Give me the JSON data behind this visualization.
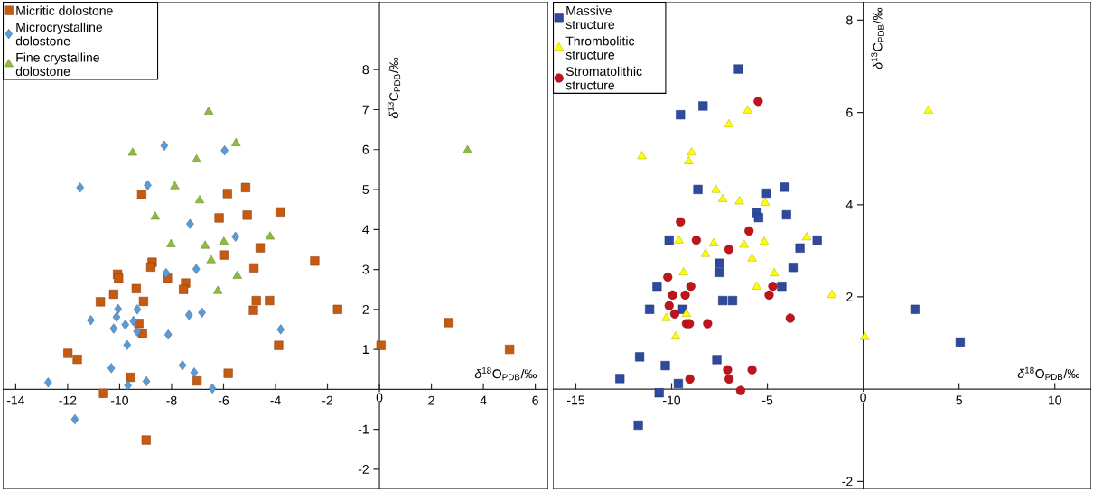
{
  "chart_data": [
    {
      "type": "scatter",
      "xlabel": "*δ*$^{18}$O$_{PDB}$/‰",
      "ylabel": "*δ*$^{13}$C$_{PDB}$/‰",
      "legend": "top left",
      "xlim": [
        -14.5,
        6.5
      ],
      "ylim": [
        -2.5,
        9.7
      ],
      "xticks": [
        -14,
        -12,
        -10,
        -8,
        -6,
        -4,
        -2,
        0,
        2,
        4,
        6
      ],
      "yticks": [
        -2,
        -1,
        1,
        2,
        3,
        4,
        5,
        6,
        7,
        8
      ],
      "series": [
        {
          "name": "Micritic dolostone",
          "color": "#c55a11",
          "marker": "square",
          "x": [
            -9.15,
            -5.85,
            -5.15,
            -6.17,
            -5.09,
            -4.59,
            -5.99,
            -4.83,
            -8.75,
            -8.8,
            -10.08,
            -10.04,
            -8.16,
            -7.46,
            -7.54,
            -9.36,
            -10.23,
            -10.74,
            -9.08,
            -4.74,
            -4.85,
            -4.23,
            -9.26,
            -9.12,
            -11.99,
            -11.63,
            -9.57,
            -5.82,
            -7.02,
            -10.62,
            -8.98,
            -3.82,
            -2.49,
            -1.61,
            -3.88,
            0.06,
            2.67,
            5.01
          ],
          "values": [
            4.88,
            4.9,
            5.05,
            4.29,
            4.36,
            3.54,
            3.36,
            3.04,
            3.18,
            3.06,
            2.88,
            2.78,
            2.78,
            2.66,
            2.5,
            2.52,
            2.38,
            2.19,
            2.2,
            2.22,
            1.98,
            2.22,
            1.65,
            1.4,
            0.9,
            0.75,
            0.3,
            0.4,
            0.21,
            -0.1,
            -1.27,
            4.44,
            3.21,
            2.0,
            1.1,
            1.1,
            1.67,
            1.0
          ]
        },
        {
          "name": "Microcrystalline dolostone",
          "color": "#5b9bd5",
          "marker": "diamond",
          "x": [
            -8.28,
            -5.96,
            -11.52,
            -8.92,
            -7.29,
            -5.54,
            -7.05,
            -8.21,
            -10.06,
            -9.32,
            -11.11,
            -10.12,
            -9.78,
            -10.23,
            -7.33,
            -6.83,
            -9.47,
            -9.33,
            -8.13,
            -9.71,
            -10.32,
            -7.58,
            -7.13,
            -12.75,
            -8.97,
            -9.68,
            -6.43,
            -11.72,
            -3.8
          ],
          "values": [
            6.1,
            5.98,
            5.05,
            5.11,
            4.14,
            3.82,
            3.01,
            2.91,
            2.01,
            2.0,
            1.73,
            1.81,
            1.62,
            1.52,
            1.86,
            1.92,
            1.71,
            1.45,
            1.37,
            1.11,
            0.53,
            0.6,
            0.42,
            0.17,
            0.2,
            0.1,
            0.02,
            -0.75,
            1.5
          ]
        },
        {
          "name": "Fine crystalline dolostone",
          "color": "#8cbd3f",
          "marker": "triangle",
          "x": [
            -6.57,
            -5.52,
            -9.5,
            -7.04,
            -7.88,
            -6.92,
            -8.63,
            -8.02,
            -6.71,
            -5.99,
            -6.48,
            -5.47,
            -6.22,
            -4.21,
            3.39
          ],
          "values": [
            6.95,
            6.16,
            5.92,
            5.75,
            5.08,
            4.73,
            4.32,
            3.63,
            3.59,
            3.69,
            3.23,
            2.84,
            2.46,
            3.82,
            5.98
          ]
        }
      ]
    },
    {
      "type": "scatter",
      "xlabel": "*δ*$^{18}$O$_{PDB}$/‰",
      "ylabel": "*δ*$^{13}$C$_{PDB}$/‰",
      "legend": "top left",
      "xlim": [
        -16.2,
        11.9
      ],
      "ylim": [
        -2.17,
        8.4
      ],
      "xticks": [
        -15,
        -10,
        -5,
        0,
        5,
        10
      ],
      "yticks": [
        -2,
        2,
        4,
        6,
        8
      ],
      "series": [
        {
          "name": "Massive structure",
          "color": "#2e4a9e",
          "marker": "square",
          "x": [
            -6.51,
            -8.36,
            -9.54,
            -8.63,
            -4.09,
            -5.04,
            -5.55,
            -5.46,
            -4.0,
            -10.13,
            -2.4,
            -3.3,
            -7.49,
            -7.52,
            -3.66,
            -10.76,
            -4.25,
            -7.33,
            -6.82,
            -11.15,
            -9.42,
            -11.67,
            -10.33,
            -7.64,
            -12.7,
            -9.65,
            -10.65,
            -11.74,
            2.7,
            5.06
          ],
          "values": [
            6.94,
            6.14,
            5.95,
            4.33,
            4.38,
            4.25,
            3.83,
            3.72,
            3.78,
            3.23,
            3.23,
            3.06,
            2.73,
            2.53,
            2.64,
            2.23,
            2.23,
            1.92,
            1.92,
            1.73,
            1.73,
            0.7,
            0.51,
            0.64,
            0.23,
            0.12,
            -0.08,
            -0.78,
            1.73,
            1.02
          ]
        },
        {
          "name": "Thrombolitic structure",
          "color": "#ffff00",
          "marker": "triangle",
          "x": [
            -6.03,
            -7.01,
            -11.55,
            -8.96,
            -9.11,
            -7.69,
            -7.33,
            -6.46,
            -5.12,
            -9.62,
            -7.8,
            -6.22,
            -5.17,
            -8.23,
            -5.8,
            -2.95,
            -9.38,
            -4.64,
            -5.56,
            -9.23,
            -10.28,
            -9.78,
            -1.63,
            0.08,
            3.4
          ],
          "values": [
            6.04,
            5.74,
            5.05,
            5.13,
            4.94,
            4.32,
            4.12,
            4.07,
            4.04,
            3.22,
            3.16,
            3.13,
            3.19,
            2.93,
            2.83,
            3.29,
            2.53,
            2.51,
            2.22,
            1.63,
            1.54,
            1.14,
            2.04,
            1.13,
            6.04
          ]
        },
        {
          "name": "Stromatolithic structure",
          "color": "#c0141c",
          "marker": "circle",
          "x": [
            -5.48,
            -9.54,
            -5.96,
            -8.71,
            -7.01,
            -10.2,
            -9.0,
            -9.95,
            -9.29,
            -10.13,
            -9.84,
            -9.23,
            -9.07,
            -8.12,
            -4.72,
            -4.91,
            -3.81,
            -7.08,
            -7.0,
            -9.05,
            -5.8,
            -6.4
          ],
          "values": [
            6.24,
            3.63,
            3.43,
            3.23,
            3.03,
            2.43,
            2.23,
            2.04,
            2.04,
            1.81,
            1.63,
            1.42,
            1.42,
            1.42,
            2.23,
            2.04,
            1.54,
            0.42,
            0.22,
            0.22,
            0.42,
            -0.03
          ]
        }
      ]
    }
  ]
}
